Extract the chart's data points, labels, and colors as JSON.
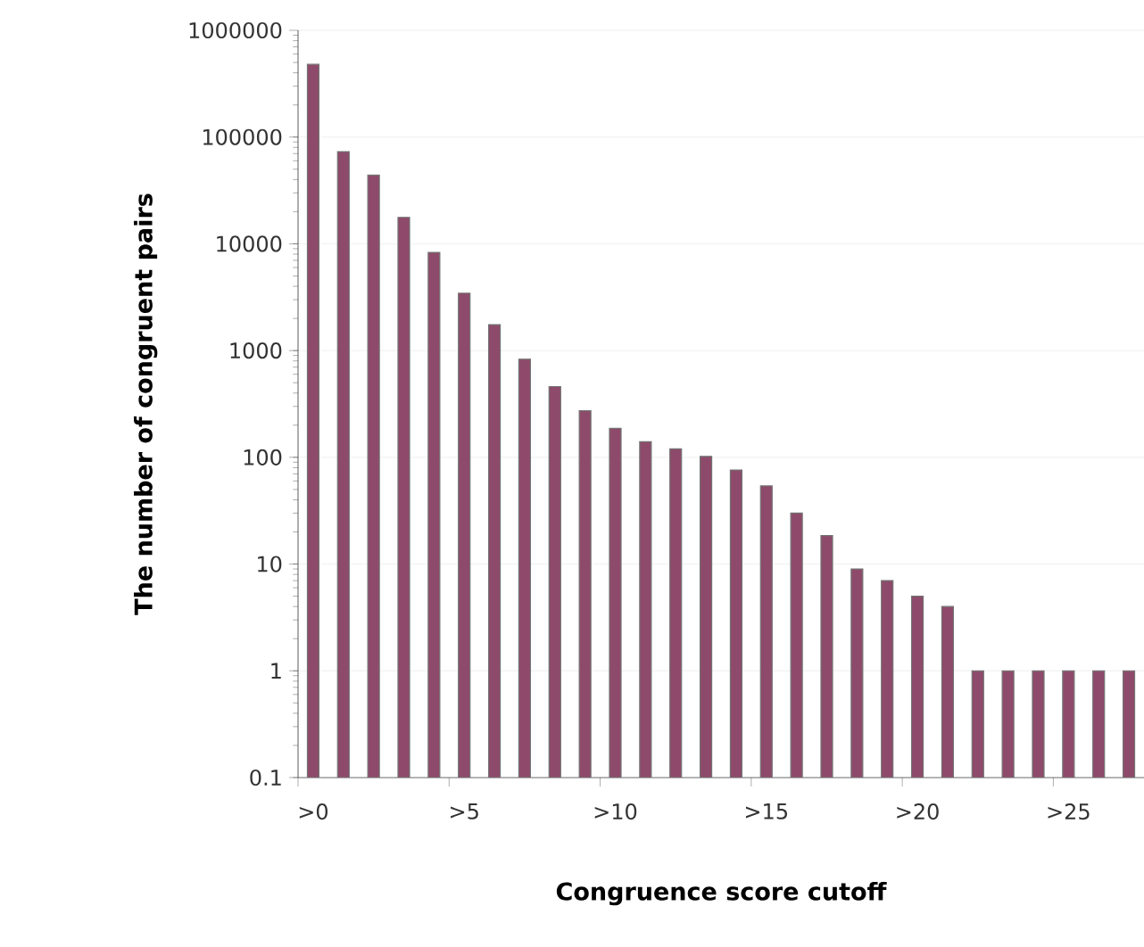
{
  "chart_data": {
    "type": "bar",
    "xlabel": "Congruence score cutoff",
    "ylabel": "The number of congruent pairs",
    "categories": [
      ">0",
      null,
      null,
      null,
      null,
      ">5",
      null,
      null,
      null,
      null,
      ">10",
      null,
      null,
      null,
      null,
      ">15",
      null,
      null,
      null,
      null,
      ">20",
      null,
      null,
      null,
      null,
      ">25",
      null,
      null
    ],
    "values": [
      480000,
      73000,
      44000,
      17700,
      8300,
      3450,
      1750,
      830,
      460,
      273,
      187,
      140,
      120,
      102,
      76,
      54,
      30,
      18.5,
      9,
      7,
      5,
      4,
      1,
      1,
      1,
      1,
      1,
      1
    ],
    "color": "#8e4a6a",
    "log": "y",
    "ylim": [
      0.1,
      1000000
    ],
    "yticks": [
      0.1,
      1,
      10,
      100,
      1000,
      10000,
      100000,
      1000000
    ],
    "grid": "y"
  }
}
